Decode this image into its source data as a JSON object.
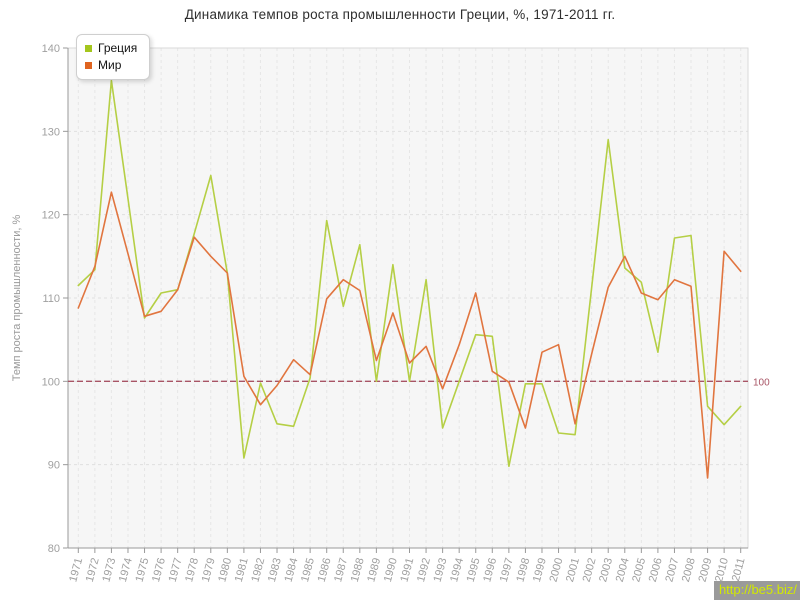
{
  "title": "Динамика темпов роста промышленности Греции, %, 1971-2011 гг.",
  "legend": {
    "items": [
      {
        "label": "Греция",
        "color": "#a4c61d"
      },
      {
        "label": "Мир",
        "color": "#df6420"
      }
    ]
  },
  "watermark": {
    "text": "http://be5.biz/",
    "text_color": "#d2e900",
    "bg_color": "#9a9a9a"
  },
  "chart_data": {
    "type": "line",
    "title": "Динамика темпов роста промышленности Греции, %, 1971-2011 гг.",
    "xlabel": "",
    "ylabel": "Темп роста промышленности, %",
    "ylim": [
      80,
      140
    ],
    "yticks": [
      80,
      90,
      100,
      110,
      120,
      130,
      140
    ],
    "grid": true,
    "legend_position": "top-left",
    "reference_line": {
      "value": 100,
      "label": "100",
      "color": "#a85465"
    },
    "x": [
      1971,
      1972,
      1973,
      1974,
      1975,
      1976,
      1977,
      1978,
      1979,
      1980,
      1981,
      1982,
      1983,
      1984,
      1985,
      1986,
      1987,
      1988,
      1989,
      1990,
      1991,
      1992,
      1993,
      1994,
      1995,
      1996,
      1997,
      1998,
      1999,
      2000,
      2001,
      2002,
      2003,
      2004,
      2005,
      2006,
      2007,
      2008,
      2009,
      2010,
      2011
    ],
    "series": [
      {
        "name": "Греция",
        "color": "#b5cf45",
        "values": [
          111.5,
          113.4,
          136.1,
          121.9,
          107.6,
          110.6,
          111.0,
          117.7,
          124.7,
          113.0,
          90.8,
          99.8,
          94.9,
          94.6,
          100.4,
          119.3,
          109.0,
          116.4,
          100.0,
          114.0,
          100.0,
          112.2,
          94.4,
          100.0,
          105.6,
          105.4,
          89.8,
          99.7,
          99.7,
          93.8,
          93.6,
          111.3,
          129.0,
          113.6,
          111.9,
          103.5,
          117.2,
          117.5,
          97.0,
          94.8,
          97.0
        ]
      },
      {
        "name": "Мир",
        "color": "#e1753f",
        "values": [
          108.8,
          113.8,
          122.7,
          115.3,
          107.8,
          108.4,
          111.0,
          117.3,
          115.0,
          113.0,
          100.6,
          97.2,
          99.5,
          102.6,
          100.8,
          109.9,
          112.2,
          110.9,
          102.5,
          108.2,
          102.2,
          104.2,
          99.1,
          104.4,
          110.6,
          101.2,
          99.9,
          94.4,
          103.5,
          104.4,
          94.9,
          103.3,
          111.3,
          115.0,
          110.6,
          109.8,
          112.2,
          111.4,
          88.4,
          115.6,
          113.2
        ]
      }
    ],
    "style": {
      "plot_bg": "#f6f6f6",
      "vgrid_color": "#e6e6e6",
      "hgrid_color": "#e0e0e0",
      "border_color": "#d9d9d9",
      "axis_color": "#999999",
      "tick_label_color": "#a0a0a0",
      "axis_title_color": "#9a9a9a"
    }
  }
}
